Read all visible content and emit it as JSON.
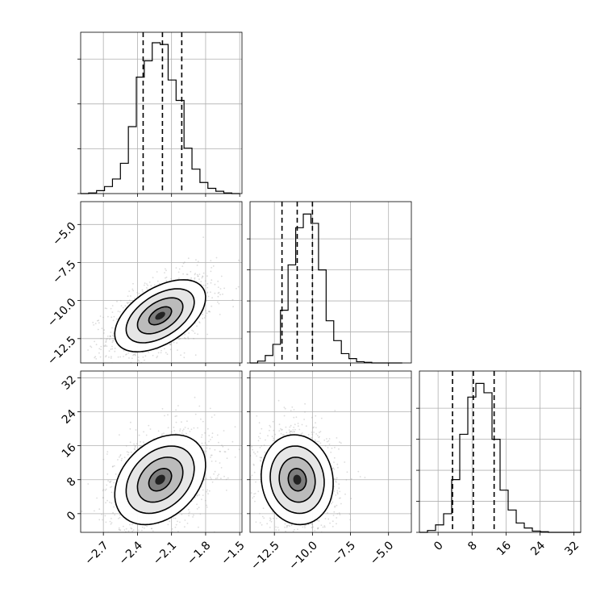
{
  "chart_data": {
    "type": "corner",
    "title": "",
    "grid": true,
    "parameters": [
      {
        "xlim": [
          -2.9,
          -1.48
        ],
        "ticks": [
          -2.7,
          -2.4,
          -2.1,
          -1.8,
          -1.5
        ],
        "tick_labels": [
          "−2.7",
          "−2.4",
          "−2.1",
          "−1.8",
          "−1.5"
        ],
        "hist_edges": [
          -2.9,
          -2.83,
          -2.76,
          -2.69,
          -2.62,
          -2.55,
          -2.48,
          -2.41,
          -2.34,
          -2.27,
          -2.2,
          -2.13,
          -2.06,
          -1.99,
          -1.92,
          -1.85,
          -1.78,
          -1.71,
          -1.64,
          -1.57,
          -1.5
        ],
        "hist_counts": [
          0,
          1,
          5,
          12,
          25,
          52,
          115,
          200,
          228,
          259,
          256,
          195,
          160,
          78,
          42,
          19,
          9,
          4,
          1,
          0
        ],
        "hist_ymax": 277,
        "hist_yticks": [
          0,
          77,
          154,
          231
        ],
        "quantiles": [
          -2.35,
          -2.18,
          -2.01
        ]
      },
      {
        "xlim": [
          -14.1,
          -3.5
        ],
        "ticks": [
          -12.5,
          -10.0,
          -7.5,
          -5.0
        ],
        "tick_labels": [
          "−12.5",
          "−10.0",
          "−7.5",
          "−5.0"
        ],
        "hist_edges": [
          -14.1,
          -13.6,
          -13.1,
          -12.6,
          -12.1,
          -11.6,
          -11.1,
          -10.6,
          -10.1,
          -9.6,
          -9.1,
          -8.6,
          -8.1,
          -7.6,
          -7.1,
          -6.6,
          -6.1,
          -5.6,
          -5.1,
          -4.6,
          -4.1
        ],
        "hist_counts": [
          0,
          3,
          12,
          30,
          85,
          158,
          218,
          240,
          225,
          150,
          68,
          36,
          15,
          7,
          2,
          1,
          0,
          0,
          0,
          0
        ],
        "hist_ymax": 260,
        "hist_yticks": [
          0,
          50,
          100,
          150,
          200
        ],
        "quantiles": [
          -12.0,
          -11.0,
          -10.0
        ]
      },
      {
        "xlim": [
          -4.4,
          33.6
        ],
        "ticks": [
          0,
          8,
          16,
          24,
          32
        ],
        "tick_labels": [
          "0",
          "8",
          "16",
          "24",
          "32"
        ],
        "hist_edges": [
          -4.4,
          -2.5,
          -0.6,
          1.3,
          3.2,
          5.1,
          7.0,
          8.9,
          10.8,
          12.7,
          14.6,
          16.5,
          18.4,
          20.3,
          22.2,
          24.1,
          26.0,
          27.9,
          29.8,
          31.7,
          33.6
        ],
        "hist_counts": [
          0,
          3,
          12,
          30,
          85,
          158,
          218,
          240,
          225,
          150,
          68,
          36,
          15,
          7,
          2,
          1,
          0,
          0,
          0,
          0
        ],
        "hist_ymax": 260,
        "hist_yticks": [
          0,
          50,
          100,
          150,
          200
        ],
        "quantiles": [
          3.4,
          8.3,
          13.2
        ]
      }
    ],
    "pairs": [
      {
        "row": 1,
        "col": 0,
        "center": [
          -2.2,
          -11.0
        ],
        "cov": [
          [
            0.04,
            0.12
          ],
          [
            0.12,
            1.4
          ]
        ],
        "ylim": [
          -14.1,
          -3.5
        ],
        "yticks": [
          -12.5,
          -10.0,
          -7.5,
          -5.0
        ],
        "ytick_labels": [
          "−12.5",
          "−10.0",
          "−7.5",
          "−5.0"
        ]
      },
      {
        "row": 2,
        "col": 0,
        "center": [
          -2.2,
          8.0
        ],
        "cov": [
          [
            0.04,
            0.35
          ],
          [
            0.35,
            28.0
          ]
        ],
        "ylim": [
          -4.4,
          33.6
        ],
        "yticks": [
          0,
          8,
          16,
          24,
          32
        ],
        "ytick_labels": [
          "0",
          "8",
          "16",
          "24",
          "32"
        ]
      },
      {
        "row": 2,
        "col": 1,
        "center": [
          -11.0,
          8.0
        ],
        "cov": [
          [
            1.4,
            -0.5
          ],
          [
            -0.5,
            28.0
          ]
        ],
        "ylim": [
          -4.4,
          33.6
        ],
        "yticks": [
          0,
          8,
          16,
          24,
          32
        ],
        "ytick_labels": [
          "0",
          "8",
          "16",
          "24",
          "32"
        ]
      }
    ],
    "contour_levels_sigma": [
      0.5,
      1.0,
      1.5,
      2.0
    ]
  }
}
